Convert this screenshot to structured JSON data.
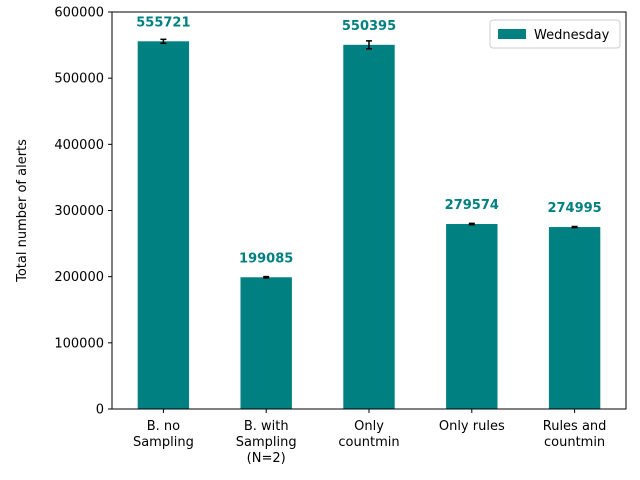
{
  "chart_data": {
    "type": "bar",
    "categories": [
      [
        "B. no",
        "Sampling"
      ],
      [
        "B. with",
        "Sampling",
        "(N=2)"
      ],
      [
        "Only",
        "countmin"
      ],
      [
        "Only rules"
      ],
      [
        "Rules and",
        "countmin"
      ]
    ],
    "series": [
      {
        "name": "Wednesday",
        "color": "#008080",
        "values": [
          555721,
          199085,
          550395,
          279574,
          274995
        ],
        "errors": [
          3000,
          1000,
          6000,
          1000,
          800
        ]
      }
    ],
    "value_labels": [
      "555721",
      "199085",
      "550395",
      "279574",
      "274995"
    ],
    "ylabel": "Total number of alerts",
    "ylim": [
      0,
      600000
    ],
    "yticks": [
      0,
      100000,
      200000,
      300000,
      400000,
      500000,
      600000
    ],
    "ytick_labels": [
      "0",
      "100000",
      "200000",
      "300000",
      "400000",
      "500000",
      "600000"
    ],
    "grid": false,
    "legend_position": "top-right"
  }
}
